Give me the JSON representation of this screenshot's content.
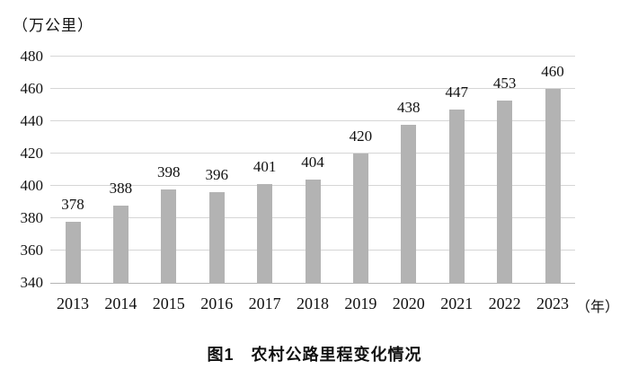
{
  "figure": {
    "unit_label": "（万公里）",
    "x_unit_label": "（年）",
    "caption": "图1　农村公路里程变化情况"
  },
  "chart_data": {
    "type": "bar",
    "title": "图1 农村公路里程变化情况",
    "categories": [
      "2013",
      "2014",
      "2015",
      "2016",
      "2017",
      "2018",
      "2019",
      "2020",
      "2021",
      "2022",
      "2023"
    ],
    "values": [
      378,
      388,
      398,
      396,
      401,
      404,
      420,
      438,
      447,
      453,
      460
    ],
    "xlabel": "（年）",
    "ylabel": "（万公里）",
    "ylim": [
      340,
      480
    ],
    "ytick_step": 20,
    "yticks": [
      340,
      360,
      380,
      400,
      420,
      440,
      460,
      480
    ],
    "grid": true,
    "legend": "none",
    "bar_color": "#b3b3b3",
    "gridline_color": "#d6d6d6",
    "baseline_color": "#b5b5b5"
  }
}
